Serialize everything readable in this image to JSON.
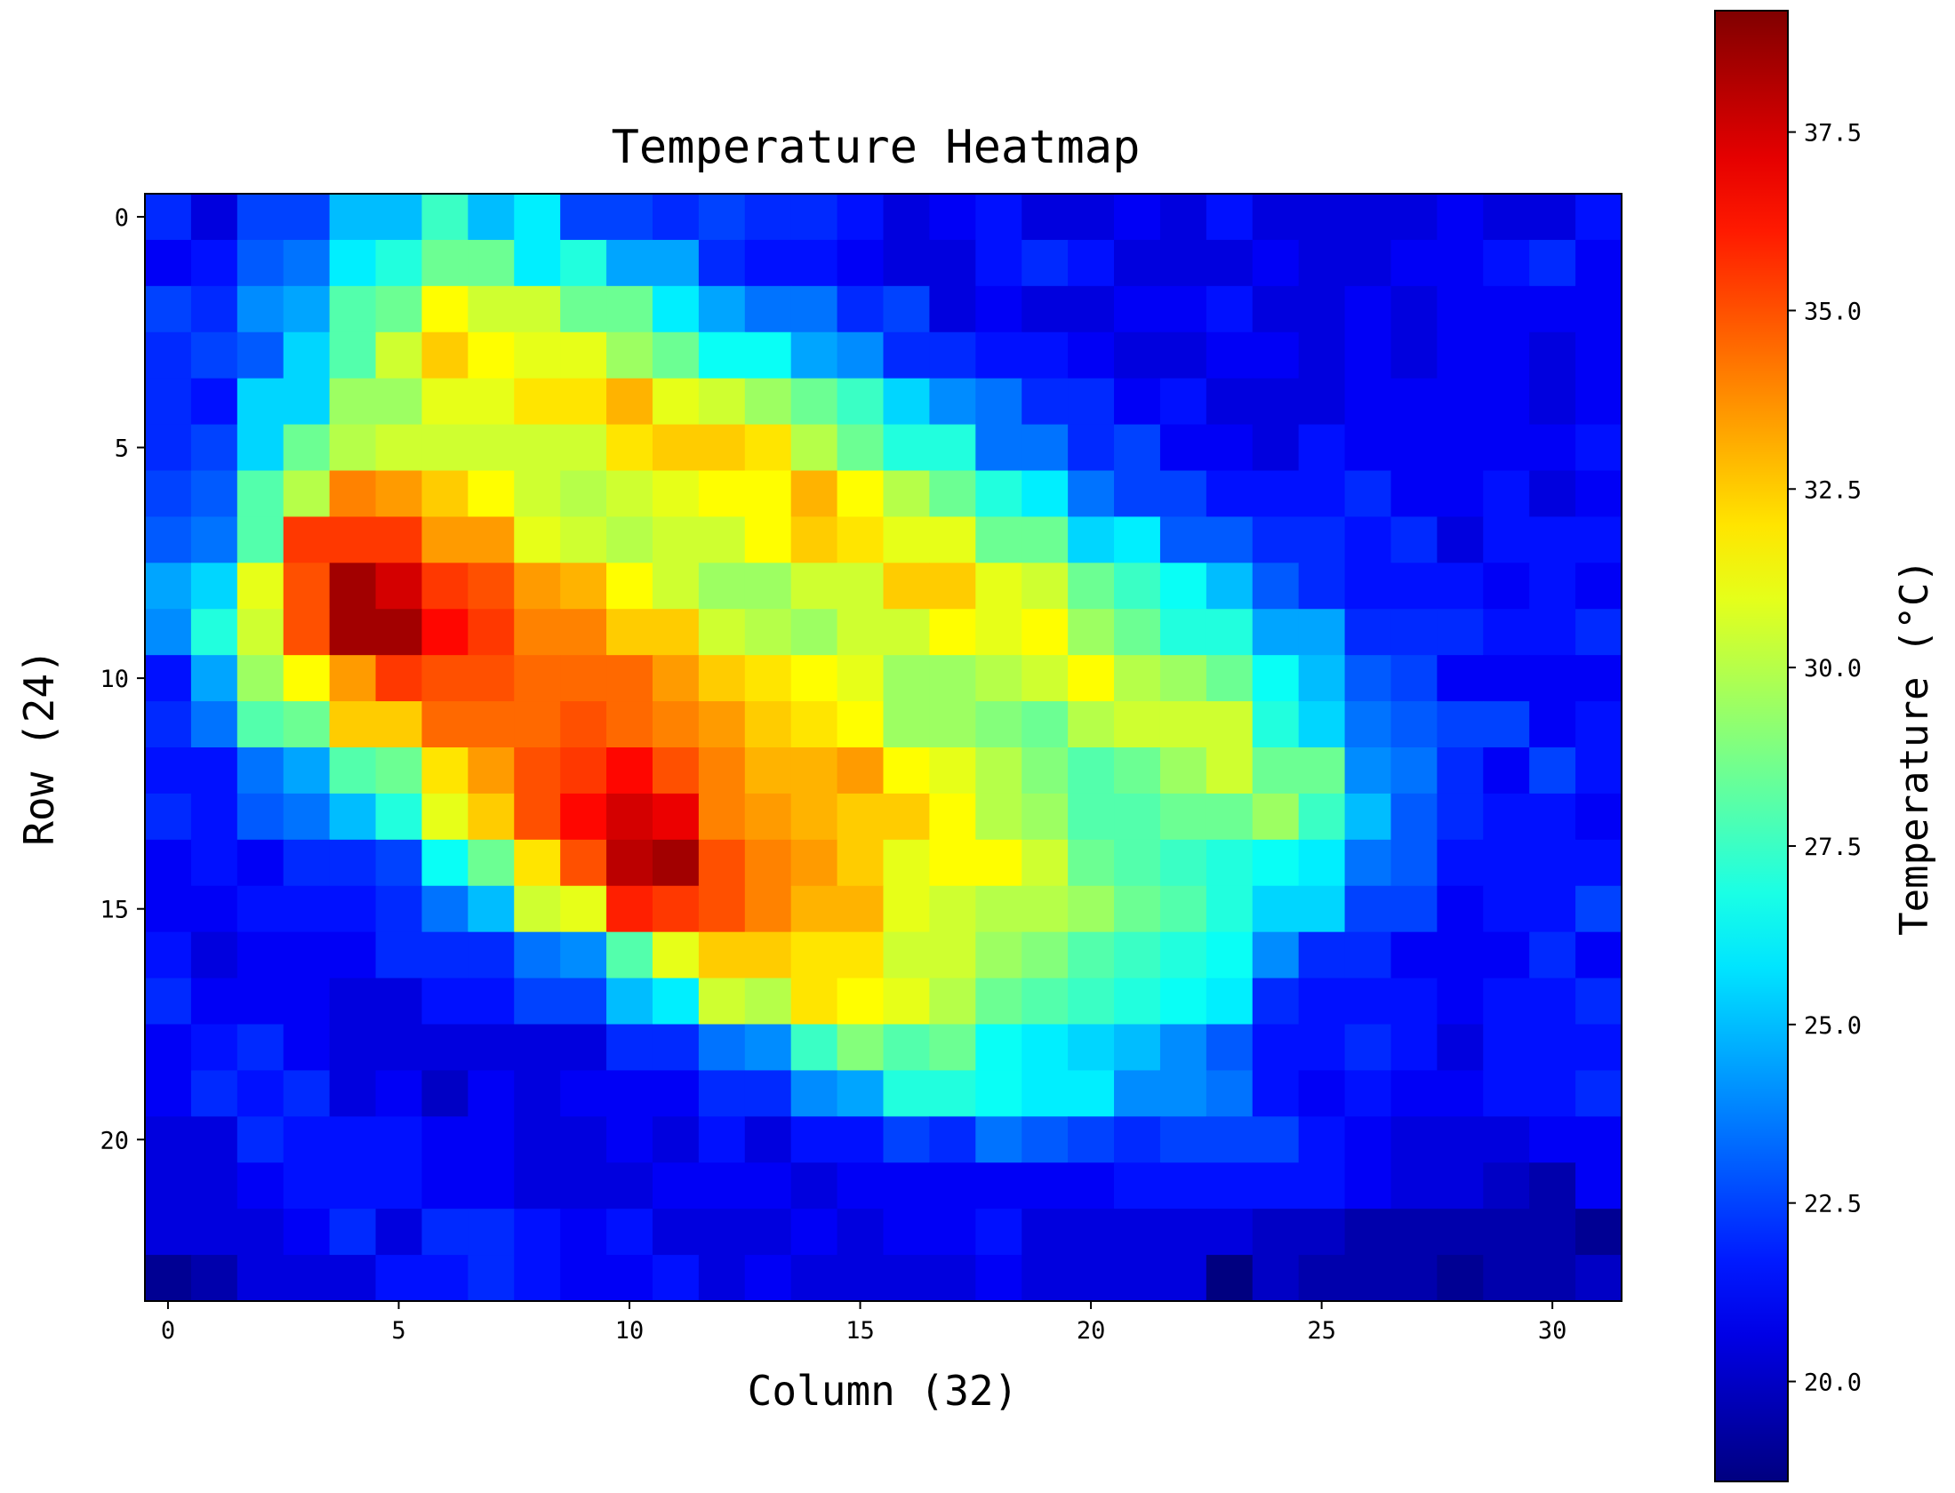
{
  "chart_data": {
    "type": "heatmap",
    "title": "Temperature Heatmap",
    "xlabel": "Column (32)",
    "ylabel": "Row (24)",
    "colorbar_label": "Temperature (°C)",
    "colormap": "jet",
    "vmin": 18.6,
    "vmax": 39.2,
    "x_ticks": [
      0,
      5,
      10,
      15,
      20,
      25,
      30
    ],
    "y_ticks": [
      0,
      5,
      10,
      15,
      20
    ],
    "colorbar_ticks": [
      "20.0",
      "22.5",
      "25.0",
      "27.5",
      "30.0",
      "32.5",
      "35.0",
      "37.5"
    ],
    "colorbar_tick_values": [
      20.0,
      22.5,
      25.0,
      27.5,
      30.0,
      32.5,
      35.0,
      37.5
    ],
    "rows": 24,
    "columns": 32,
    "values": [
      [
        22.0,
        20.5,
        22.5,
        22.5,
        25.0,
        25.0,
        27.5,
        25.0,
        26.0,
        22.5,
        22.5,
        22.0,
        22.5,
        22.0,
        22.0,
        21.5,
        20.5,
        21.0,
        21.5,
        20.5,
        20.5,
        21.0,
        20.5,
        21.5,
        20.5,
        20.5,
        20.5,
        20.5,
        21.0,
        20.5,
        20.5,
        21.5
      ],
      [
        21.0,
        21.5,
        23.0,
        23.5,
        26.0,
        27.0,
        28.5,
        28.5,
        26.0,
        27.0,
        24.5,
        24.5,
        22.0,
        21.5,
        21.5,
        21.0,
        20.5,
        20.5,
        21.5,
        22.0,
        21.5,
        20.5,
        20.5,
        20.5,
        21.0,
        20.5,
        20.5,
        21.0,
        21.0,
        21.5,
        22.0,
        21.0
      ],
      [
        22.5,
        22.0,
        24.0,
        24.5,
        28.0,
        28.5,
        31.5,
        30.5,
        30.5,
        28.5,
        28.5,
        26.0,
        24.5,
        23.5,
        23.5,
        22.0,
        22.5,
        20.5,
        21.0,
        20.5,
        20.5,
        21.0,
        21.0,
        21.5,
        20.5,
        20.5,
        21.0,
        20.5,
        21.0,
        21.0,
        21.0,
        21.0
      ],
      [
        22.0,
        22.5,
        23.0,
        25.5,
        28.0,
        30.5,
        32.5,
        31.5,
        31.0,
        31.0,
        29.5,
        28.5,
        26.5,
        26.5,
        24.5,
        24.0,
        22.0,
        22.0,
        21.5,
        21.5,
        21.0,
        20.5,
        20.5,
        21.0,
        21.0,
        20.5,
        21.0,
        20.5,
        21.0,
        21.0,
        20.5,
        21.0
      ],
      [
        22.0,
        21.5,
        25.5,
        25.5,
        29.5,
        29.5,
        31.0,
        31.0,
        32.0,
        32.0,
        33.0,
        31.0,
        30.5,
        29.5,
        28.5,
        27.5,
        25.5,
        24.0,
        23.5,
        22.0,
        22.0,
        21.0,
        21.5,
        20.5,
        20.5,
        20.5,
        21.0,
        21.0,
        21.0,
        21.0,
        20.5,
        21.0
      ],
      [
        22.0,
        22.5,
        25.5,
        28.5,
        30.0,
        30.5,
        30.5,
        30.5,
        30.5,
        30.5,
        32.0,
        32.5,
        32.5,
        32.0,
        30.0,
        28.5,
        27.0,
        27.0,
        23.5,
        23.5,
        22.0,
        22.5,
        21.0,
        21.0,
        20.5,
        21.5,
        21.0,
        21.0,
        21.0,
        21.0,
        21.0,
        21.5
      ],
      [
        22.5,
        23.0,
        28.0,
        30.0,
        34.0,
        33.5,
        32.5,
        31.5,
        30.5,
        30.0,
        30.5,
        31.0,
        31.5,
        31.5,
        33.0,
        31.5,
        30.0,
        28.5,
        27.0,
        26.0,
        23.5,
        22.5,
        22.5,
        21.5,
        21.5,
        21.5,
        22.0,
        21.0,
        21.0,
        21.5,
        20.5,
        21.0
      ],
      [
        23.0,
        23.5,
        28.0,
        35.5,
        35.5,
        35.5,
        33.5,
        33.5,
        31.0,
        30.5,
        30.0,
        30.5,
        30.5,
        31.5,
        32.5,
        32.0,
        31.0,
        31.0,
        28.5,
        28.5,
        25.5,
        26.0,
        23.0,
        23.0,
        22.0,
        22.0,
        21.5,
        22.0,
        20.5,
        21.5,
        21.5,
        21.5
      ],
      [
        24.5,
        25.5,
        31.0,
        35.0,
        38.5,
        37.5,
        35.5,
        35.0,
        33.5,
        33.0,
        31.5,
        30.5,
        29.5,
        29.5,
        30.5,
        30.5,
        32.5,
        32.5,
        31.0,
        30.5,
        28.5,
        27.5,
        26.5,
        25.0,
        23.0,
        22.0,
        21.5,
        21.5,
        21.5,
        21.0,
        21.5,
        21.0
      ],
      [
        24.0,
        27.0,
        30.5,
        35.0,
        38.5,
        38.5,
        36.5,
        35.5,
        34.0,
        34.0,
        32.5,
        32.5,
        30.5,
        30.0,
        29.5,
        30.5,
        30.5,
        31.5,
        31.0,
        31.5,
        29.5,
        28.5,
        27.0,
        27.0,
        24.5,
        24.5,
        22.0,
        22.0,
        22.0,
        21.5,
        21.5,
        22.0
      ],
      [
        21.5,
        24.5,
        29.5,
        31.5,
        33.5,
        35.5,
        35.0,
        35.0,
        34.5,
        34.5,
        34.5,
        33.5,
        32.5,
        32.0,
        31.5,
        31.0,
        29.5,
        29.5,
        30.0,
        30.5,
        31.5,
        30.0,
        29.5,
        28.5,
        26.5,
        25.0,
        23.0,
        22.5,
        21.0,
        21.0,
        21.0,
        21.0
      ],
      [
        22.0,
        23.5,
        28.0,
        28.5,
        32.5,
        32.5,
        34.5,
        34.5,
        34.5,
        35.0,
        34.5,
        34.0,
        33.5,
        32.5,
        32.0,
        31.5,
        29.5,
        29.5,
        29.0,
        28.5,
        30.0,
        30.5,
        30.5,
        30.5,
        27.0,
        25.5,
        23.5,
        23.0,
        22.5,
        22.5,
        21.0,
        21.5
      ],
      [
        21.5,
        21.5,
        23.5,
        24.5,
        28.0,
        28.5,
        32.0,
        33.5,
        35.0,
        35.5,
        36.5,
        35.0,
        34.0,
        33.0,
        33.0,
        33.5,
        31.5,
        31.0,
        30.0,
        29.0,
        28.0,
        28.5,
        29.5,
        30.5,
        28.5,
        28.5,
        24.0,
        23.5,
        22.0,
        21.0,
        22.5,
        21.5
      ],
      [
        22.0,
        21.5,
        23.0,
        23.5,
        25.0,
        27.0,
        31.0,
        32.5,
        35.0,
        36.5,
        37.5,
        37.0,
        34.0,
        33.5,
        33.0,
        32.5,
        32.5,
        31.5,
        30.0,
        29.5,
        28.0,
        28.0,
        28.5,
        28.5,
        29.5,
        27.5,
        25.0,
        23.0,
        22.0,
        21.5,
        21.5,
        21.0
      ],
      [
        21.0,
        21.5,
        21.0,
        22.0,
        22.0,
        22.5,
        26.5,
        28.5,
        32.0,
        35.0,
        38.0,
        38.5,
        35.0,
        34.0,
        33.5,
        32.5,
        31.0,
        31.5,
        31.5,
        30.5,
        28.5,
        28.0,
        27.5,
        27.0,
        26.5,
        26.0,
        23.5,
        23.0,
        21.5,
        21.5,
        21.5,
        21.5
      ],
      [
        21.0,
        21.0,
        21.5,
        21.5,
        21.5,
        22.0,
        23.5,
        25.0,
        30.5,
        31.0,
        36.0,
        35.5,
        35.0,
        34.0,
        33.0,
        33.0,
        31.0,
        30.5,
        30.0,
        30.0,
        29.5,
        28.5,
        28.0,
        27.0,
        25.5,
        25.5,
        22.5,
        22.5,
        21.0,
        21.5,
        21.5,
        22.5
      ],
      [
        21.5,
        20.5,
        21.0,
        21.0,
        21.0,
        22.0,
        22.0,
        22.0,
        23.5,
        24.0,
        28.0,
        31.0,
        32.5,
        32.5,
        32.0,
        32.0,
        30.5,
        30.5,
        29.5,
        29.0,
        28.0,
        27.5,
        27.0,
        26.5,
        24.0,
        22.0,
        22.0,
        21.0,
        21.0,
        21.0,
        22.0,
        21.0
      ],
      [
        22.0,
        21.0,
        21.0,
        21.0,
        20.5,
        20.5,
        21.5,
        21.5,
        22.5,
        22.5,
        25.0,
        26.0,
        30.5,
        30.0,
        32.0,
        31.5,
        31.0,
        30.0,
        28.5,
        28.0,
        27.5,
        27.0,
        26.5,
        26.0,
        22.0,
        21.5,
        21.5,
        21.5,
        21.0,
        21.5,
        21.5,
        22.0
      ],
      [
        21.0,
        21.5,
        22.0,
        21.0,
        20.5,
        20.5,
        20.5,
        20.5,
        20.5,
        20.5,
        22.0,
        22.0,
        23.5,
        24.0,
        27.5,
        29.0,
        28.0,
        28.5,
        26.5,
        26.0,
        25.5,
        25.0,
        24.0,
        23.0,
        21.5,
        21.5,
        22.0,
        21.5,
        20.5,
        21.5,
        21.5,
        21.5
      ],
      [
        21.0,
        22.0,
        21.5,
        22.0,
        20.5,
        21.0,
        20.0,
        21.0,
        20.5,
        21.0,
        21.0,
        21.0,
        22.0,
        22.0,
        24.0,
        24.5,
        27.0,
        27.0,
        26.5,
        26.0,
        26.0,
        24.0,
        24.0,
        23.5,
        21.5,
        21.0,
        21.5,
        21.0,
        21.0,
        21.5,
        21.5,
        22.0
      ],
      [
        20.5,
        20.5,
        22.0,
        21.5,
        21.5,
        21.5,
        21.0,
        21.0,
        20.5,
        20.5,
        21.0,
        20.5,
        21.5,
        20.5,
        21.5,
        21.5,
        22.5,
        22.0,
        23.5,
        23.0,
        22.5,
        22.0,
        22.5,
        22.5,
        22.5,
        21.5,
        21.0,
        20.5,
        20.5,
        20.5,
        21.0,
        21.0
      ],
      [
        20.5,
        20.5,
        21.0,
        21.5,
        21.5,
        21.5,
        21.0,
        21.0,
        20.5,
        20.5,
        20.5,
        21.0,
        21.0,
        21.0,
        20.5,
        21.0,
        21.0,
        21.0,
        21.0,
        21.0,
        21.0,
        21.5,
        21.5,
        21.5,
        21.5,
        21.5,
        21.0,
        20.5,
        20.5,
        20.0,
        19.5,
        21.0
      ],
      [
        20.5,
        20.5,
        20.5,
        21.0,
        22.0,
        20.5,
        22.0,
        22.0,
        21.5,
        21.0,
        21.5,
        20.5,
        20.5,
        20.5,
        21.0,
        20.5,
        21.0,
        21.0,
        21.5,
        20.5,
        20.5,
        20.5,
        20.5,
        20.5,
        20.0,
        20.0,
        19.5,
        19.5,
        19.5,
        19.5,
        19.5,
        19.0
      ],
      [
        19.0,
        19.5,
        20.5,
        20.5,
        20.5,
        21.5,
        21.5,
        22.0,
        21.5,
        21.0,
        21.0,
        21.5,
        20.5,
        21.0,
        20.5,
        20.5,
        20.5,
        20.5,
        21.0,
        20.5,
        20.5,
        20.5,
        20.5,
        18.6,
        20.0,
        19.5,
        19.5,
        19.5,
        19.0,
        19.5,
        19.5,
        20.0
      ]
    ]
  }
}
